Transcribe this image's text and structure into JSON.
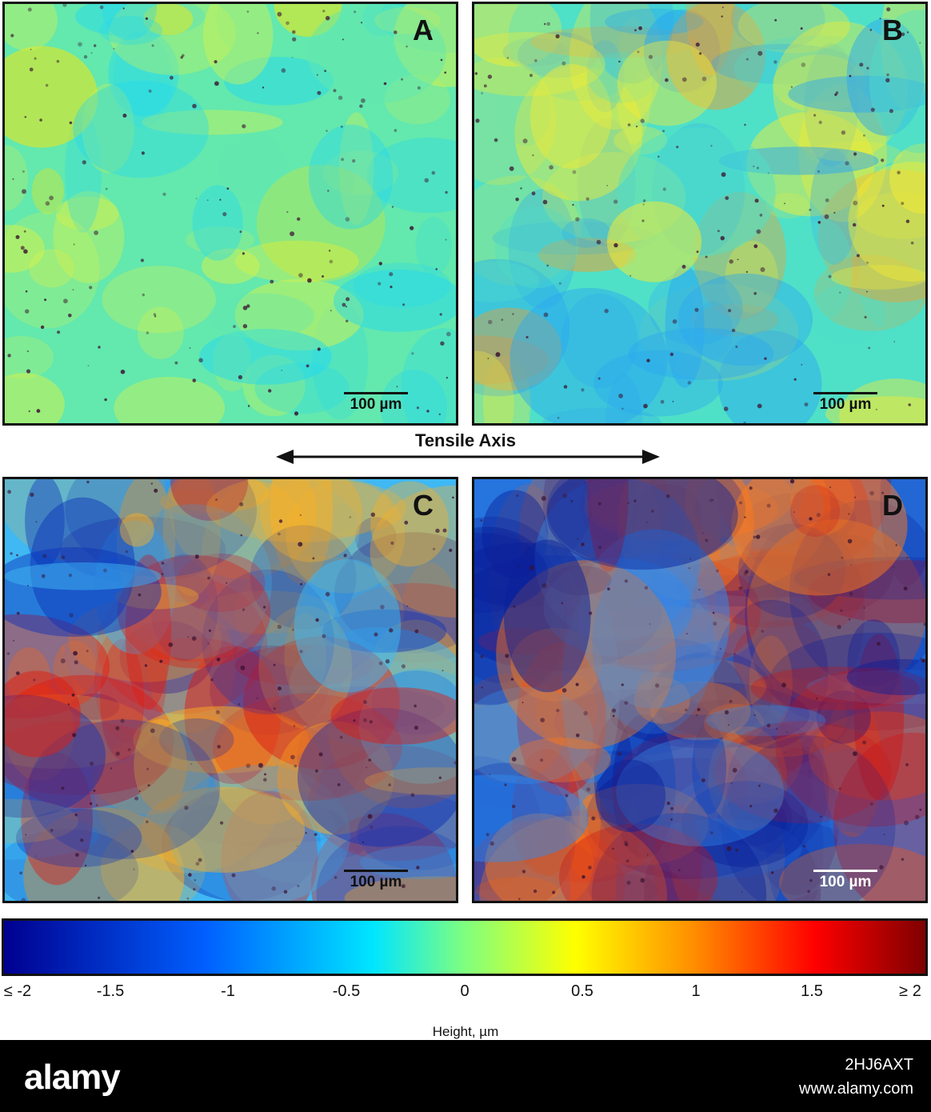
{
  "panels": [
    {
      "letter": "A",
      "scale_label": "100 µm",
      "colors": {
        "base": "#63e8ae",
        "accent": "#d6f24a",
        "hot": "#ffe600",
        "cold": "#22d8f0"
      }
    },
    {
      "letter": "B",
      "scale_label": "100 µm",
      "colors": {
        "base": "#4fe0c8",
        "accent": "#f7ec30",
        "hot": "#ff9a20",
        "cold": "#2aa8f0"
      }
    },
    {
      "letter": "C",
      "scale_label": "100 µm",
      "colors": {
        "base": "#3fb8f4",
        "accent": "#ffb020",
        "hot": "#e11a10",
        "cold": "#0a2fb8"
      }
    },
    {
      "letter": "D",
      "scale_label": "100 µm",
      "colors": {
        "base": "#2f8cf0",
        "accent": "#ff7a18",
        "hot": "#d01010",
        "cold": "#0a1f9a"
      }
    }
  ],
  "axis": {
    "title": "Tensile Axis"
  },
  "colorbar": {
    "ticks": [
      "≤ -2",
      "-1.5",
      "-1",
      "-0.5",
      "0",
      "0.5",
      "1",
      "1.5",
      "≥ 2"
    ],
    "label": "Height, µm"
  },
  "footer": {
    "logo": "alamy",
    "image_id": "2HJ6AXT",
    "url": "www.alamy.com"
  }
}
